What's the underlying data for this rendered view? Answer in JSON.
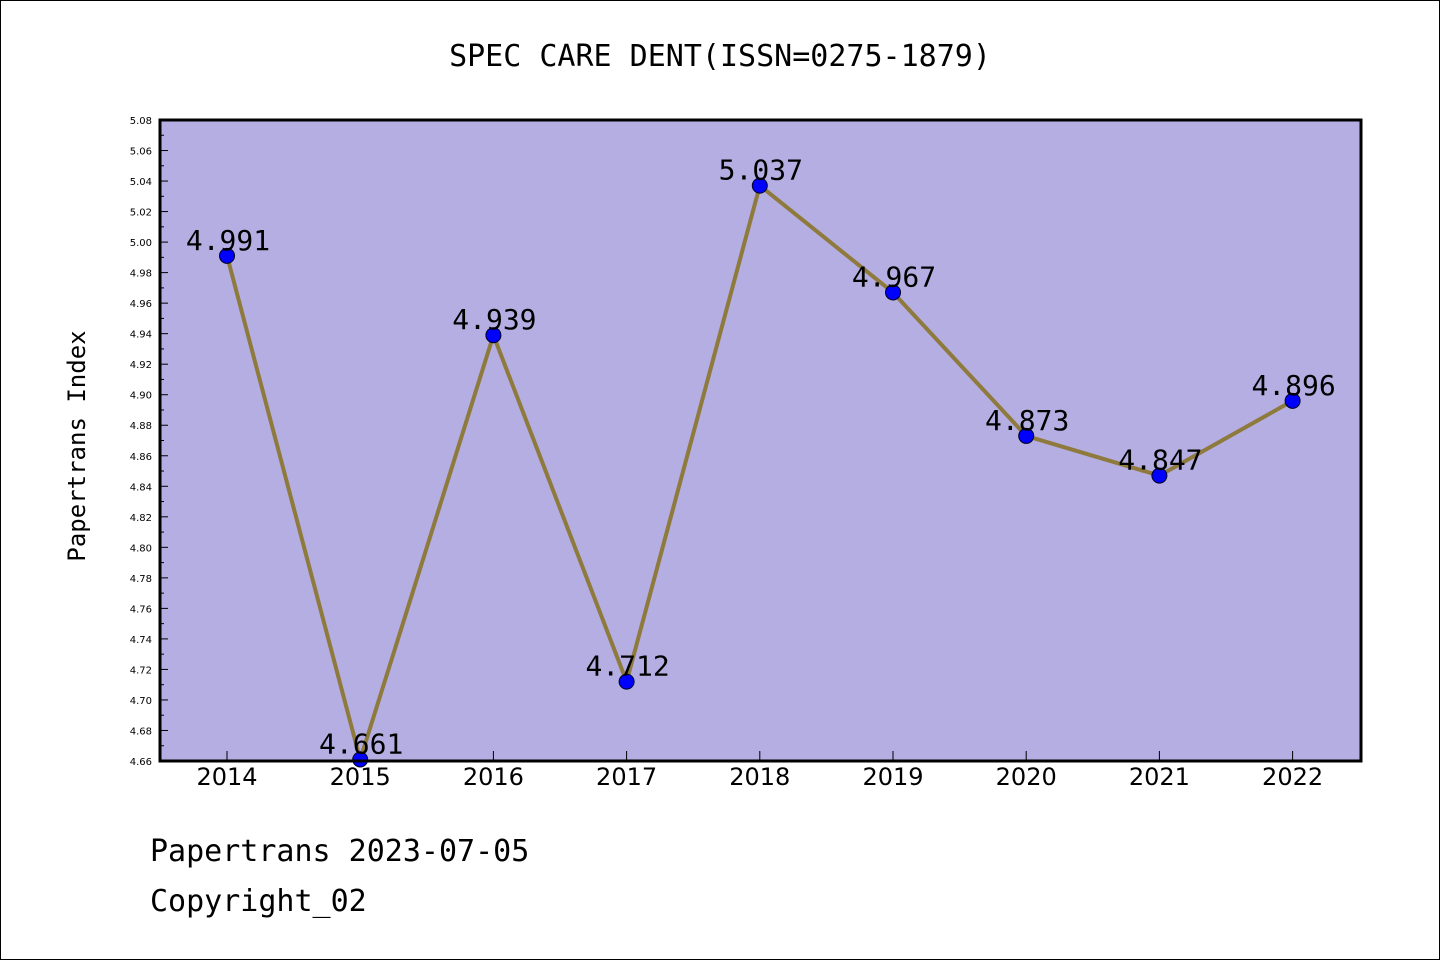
{
  "chart_data": {
    "type": "line",
    "title": "SPEC CARE DENT(ISSN=0275-1879)",
    "xlabel": "",
    "ylabel": "Papertrans Index",
    "categories": [
      "2014",
      "2015",
      "2016",
      "2017",
      "2018",
      "2019",
      "2020",
      "2021",
      "2022"
    ],
    "values": [
      4.991,
      4.661,
      4.939,
      4.712,
      5.037,
      4.967,
      4.873,
      4.847,
      4.896
    ],
    "data_labels": [
      "4.991",
      "4.661",
      "4.939",
      "4.712",
      "5.037",
      "4.967",
      "4.873",
      "4.847",
      "4.896"
    ],
    "ylim": [
      4.66,
      5.08
    ],
    "yticks": [
      "4.66",
      "4.68",
      "4.70",
      "4.72",
      "4.74",
      "4.76",
      "4.78",
      "4.80",
      "4.82",
      "4.84",
      "4.86",
      "4.88",
      "4.90",
      "4.92",
      "4.94",
      "4.96",
      "4.98",
      "5.00",
      "5.02",
      "5.04",
      "5.06",
      "5.08"
    ],
    "grid": false,
    "colors": {
      "plot_background": "#b5aee2",
      "line": "#8e7a3c",
      "marker": "#0000ff"
    }
  },
  "footer": {
    "line1": "Papertrans 2023-07-05",
    "line2": "Copyright_02"
  }
}
